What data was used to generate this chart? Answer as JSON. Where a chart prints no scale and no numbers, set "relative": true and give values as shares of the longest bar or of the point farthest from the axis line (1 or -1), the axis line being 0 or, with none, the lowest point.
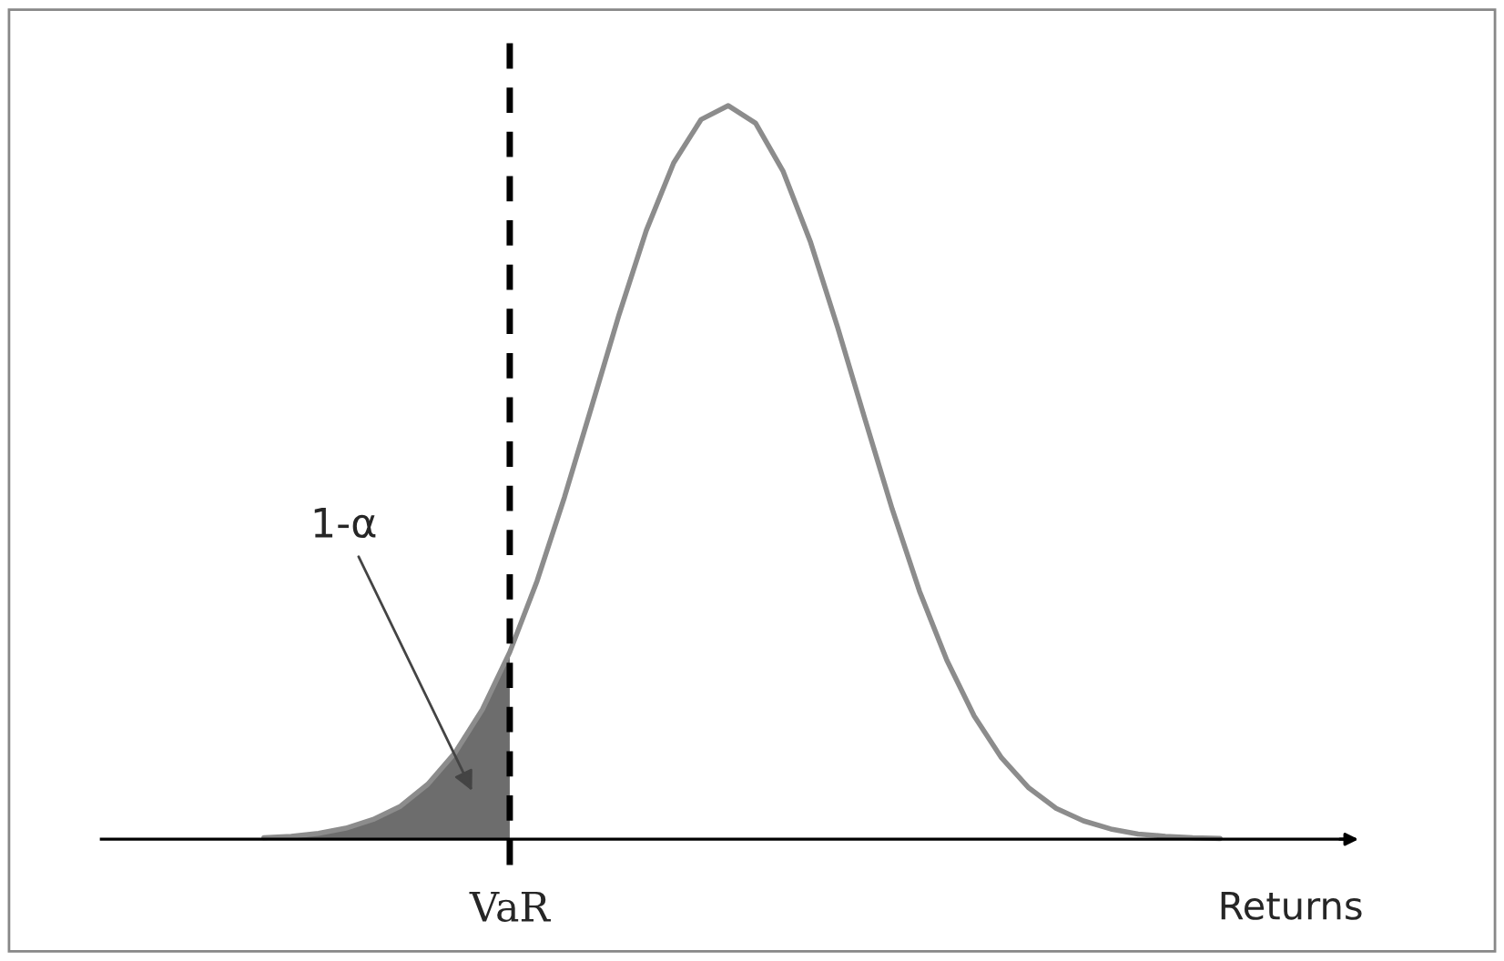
{
  "chart_data": {
    "type": "line",
    "relative": true,
    "xlabel": "Returns",
    "categories": [
      null,
      null,
      null,
      null,
      null,
      null,
      null,
      null,
      null,
      null,
      null,
      null,
      null,
      null,
      null,
      null,
      null,
      null,
      null,
      null,
      null,
      null,
      null,
      null,
      null,
      null,
      null,
      null,
      null,
      null,
      null,
      null,
      null,
      null,
      null,
      null
    ],
    "series": [
      {
        "color": "#8c8c8c",
        "values": [
          0.002,
          0.004,
          0.008,
          0.015,
          0.027,
          0.045,
          0.075,
          0.118,
          0.177,
          0.255,
          0.352,
          0.466,
          0.59,
          0.715,
          0.83,
          0.922,
          0.981,
          1.0,
          0.976,
          0.911,
          0.815,
          0.698,
          0.573,
          0.45,
          0.338,
          0.244,
          0.168,
          0.111,
          0.07,
          0.042,
          0.025,
          0.014,
          0.007,
          0.004,
          0.002,
          0.001
        ]
      },
      {
        "type": "area",
        "color": "#6d6d6d",
        "values": [
          0.002,
          0.004,
          0.008,
          0.015,
          0.027,
          0.045,
          0.075,
          0.118,
          0.177,
          0.255,
          null,
          null,
          null,
          null,
          null,
          null,
          null,
          null,
          null,
          null,
          null,
          null,
          null,
          null,
          null,
          null,
          null,
          null,
          null,
          null,
          null,
          null,
          null,
          null,
          null,
          null
        ]
      }
    ],
    "annotations": [
      "1-α",
      "VaR"
    ]
  }
}
